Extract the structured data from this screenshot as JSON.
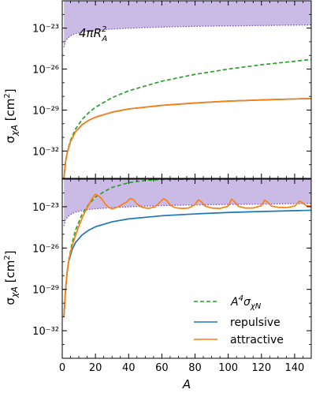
{
  "chart_data": [
    {
      "type": "line",
      "panel": "top",
      "xlim": [
        0,
        150
      ],
      "ylim": [
        1e-34,
        1e-21
      ],
      "yscale": "log",
      "ylabel": "σχA [cm²]",
      "yticks": [
        1e-32,
        1e-29,
        1e-26,
        1e-23
      ],
      "ytick_labels": [
        "10⁻³²",
        "10⁻²⁹",
        "10⁻²⁶",
        "10⁻²³"
      ],
      "grid": false,
      "annotation": "4πRA²",
      "band": {
        "name": "4πR_A^2",
        "color": "#b39ddb",
        "upper": 1e-21,
        "lower_x": [
          1,
          2,
          4,
          6,
          8,
          12,
          16,
          20,
          30,
          40,
          60,
          80,
          100,
          120,
          150
        ],
        "lower_y": [
          4e-25,
          1.2e-24,
          2.2e-24,
          3.2e-24,
          4e-24,
          5.2e-24,
          6.2e-24,
          7e-24,
          8.5e-24,
          9.8e-24,
          1.2e-23,
          1.35e-23,
          1.45e-23,
          1.55e-23,
          1.7e-23
        ]
      },
      "series": [
        {
          "key": "a4",
          "color": "#2ca02c",
          "dash": "5,3",
          "x": [
            1,
            2,
            3,
            5,
            8,
            12,
            16,
            20,
            30,
            40,
            60,
            80,
            100,
            120,
            150
          ],
          "y": [
            1e-34,
            1.6e-33,
            8.1e-33,
            6.25e-32,
            4.1e-31,
            2.07e-30,
            6.55e-30,
            1.6e-29,
            8.1e-29,
            2.56e-28,
            1.3e-27,
            4.1e-27,
            1e-26,
            2.07e-26,
            5.06e-26
          ]
        },
        {
          "key": "rep",
          "color": "#1f77b4",
          "dash": "",
          "x": [
            1,
            2,
            3,
            5,
            8,
            12,
            16,
            20,
            30,
            40,
            60,
            80,
            100,
            120,
            150
          ],
          "y": [
            1e-34,
            1.6e-33,
            7.5e-33,
            5e-32,
            2.6e-31,
            8.5e-31,
            1.8e-30,
            3e-30,
            7e-30,
            1.2e-29,
            2.2e-29,
            3.3e-29,
            4.5e-29,
            5.5e-29,
            7e-29
          ]
        },
        {
          "key": "att",
          "color": "#ff7f0e",
          "dash": "",
          "x": [
            1,
            2,
            3,
            5,
            8,
            12,
            16,
            20,
            30,
            40,
            60,
            80,
            100,
            120,
            150
          ],
          "y": [
            1e-34,
            1.6e-33,
            7.5e-33,
            5e-32,
            2.6e-31,
            8.5e-31,
            1.8e-30,
            3e-30,
            7e-30,
            1.2e-29,
            2.2e-29,
            3.3e-29,
            4.5e-29,
            5.5e-29,
            7e-29
          ]
        }
      ]
    },
    {
      "type": "line",
      "panel": "bottom",
      "xlim": [
        0,
        150
      ],
      "ylim": [
        1e-34,
        1e-21
      ],
      "yscale": "log",
      "xlabel": "A",
      "ylabel": "σχA [cm²]",
      "xticks": [
        0,
        20,
        40,
        60,
        80,
        100,
        120,
        140
      ],
      "xtick_labels": [
        "0",
        "20",
        "40",
        "60",
        "80",
        "100",
        "120",
        "140"
      ],
      "yticks": [
        1e-32,
        1e-29,
        1e-26,
        1e-23
      ],
      "ytick_labels": [
        "10⁻³²",
        "10⁻²⁹",
        "10⁻²⁶",
        "10⁻²³"
      ],
      "grid": false,
      "legend_position": "lower-right",
      "band": {
        "name": "4πR_A^2",
        "color": "#b39ddb",
        "upper": 1e-21,
        "lower_x": [
          1,
          2,
          4,
          6,
          8,
          12,
          16,
          20,
          30,
          40,
          60,
          80,
          100,
          120,
          150
        ],
        "lower_y": [
          4e-25,
          1.2e-24,
          2.2e-24,
          3.2e-24,
          4e-24,
          5.2e-24,
          6.2e-24,
          7e-24,
          8.5e-24,
          9.8e-24,
          1.2e-23,
          1.35e-23,
          1.45e-23,
          1.55e-23,
          1.7e-23
        ]
      },
      "series": [
        {
          "key": "a4",
          "name": "A⁴σχN",
          "color": "#2ca02c",
          "dash": "5,3",
          "x": [
            1,
            2,
            3,
            4,
            6,
            8,
            12,
            16,
            20,
            25,
            30,
            40,
            50,
            60,
            80,
            100,
            116
          ],
          "y": [
            1e-31,
            1e-29,
            2e-28,
            1.5e-27,
            2.5e-26,
            2e-25,
            3e-24,
            1.5e-23,
            5e-23,
            1.2e-22,
            2.5e-22,
            5.5e-22,
            8e-22,
            9.5e-22,
            1e-21,
            1e-21,
            1e-21
          ]
        },
        {
          "key": "rep",
          "name": "repulsive",
          "color": "#1f77b4",
          "dash": "",
          "x": [
            1,
            2,
            3,
            4,
            6,
            8,
            12,
            16,
            20,
            30,
            40,
            60,
            80,
            100,
            120,
            150
          ],
          "y": [
            1e-31,
            1e-29,
            2e-28,
            1.2e-27,
            8e-27,
            2.5e-26,
            9e-26,
            2e-25,
            3.5e-25,
            8e-25,
            1.3e-24,
            2.2e-24,
            3e-24,
            3.8e-24,
            4.5e-24,
            5.5e-24
          ]
        },
        {
          "key": "att",
          "name": "attractive",
          "color": "#ff7f0e",
          "dash": "",
          "x": [
            1,
            2,
            3,
            4,
            6,
            8,
            10,
            12,
            14,
            16,
            18,
            20,
            22,
            24,
            26,
            28,
            30,
            33,
            36,
            39,
            41,
            43,
            45,
            48,
            52,
            56,
            59,
            61,
            63,
            65,
            68,
            72,
            76,
            80,
            82,
            84,
            86,
            90,
            95,
            100,
            102,
            104,
            106,
            110,
            115,
            120,
            122,
            124,
            126,
            130,
            135,
            140,
            143,
            145,
            147,
            150
          ],
          "y": [
            1e-31,
            1e-29,
            2e-28,
            1.5e-27,
            1.5e-26,
            8e-26,
            4e-25,
            1.5e-24,
            5e-24,
            1.4e-23,
            4e-23,
            8e-23,
            6e-23,
            3.5e-23,
            1.5e-23,
            9e-24,
            7e-24,
            9e-24,
            1.4e-23,
            2.3e-23,
            4e-23,
            3.2e-23,
            1.6e-23,
            9e-24,
            7.5e-24,
            1e-23,
            2.2e-23,
            3.8e-23,
            2.8e-23,
            1.3e-23,
            8.5e-24,
            7.5e-24,
            8e-24,
            1.4e-23,
            3.2e-23,
            2.2e-23,
            1.1e-23,
            8e-24,
            7.5e-24,
            1.1e-23,
            3.6e-23,
            2.2e-23,
            1.1e-23,
            8e-24,
            8e-24,
            1.2e-23,
            3e-23,
            2e-23,
            1.1e-23,
            9e-24,
            8.5e-24,
            1.1e-23,
            2.6e-23,
            1.8e-23,
            1.2e-23,
            1.1e-23
          ]
        }
      ]
    }
  ]
}
